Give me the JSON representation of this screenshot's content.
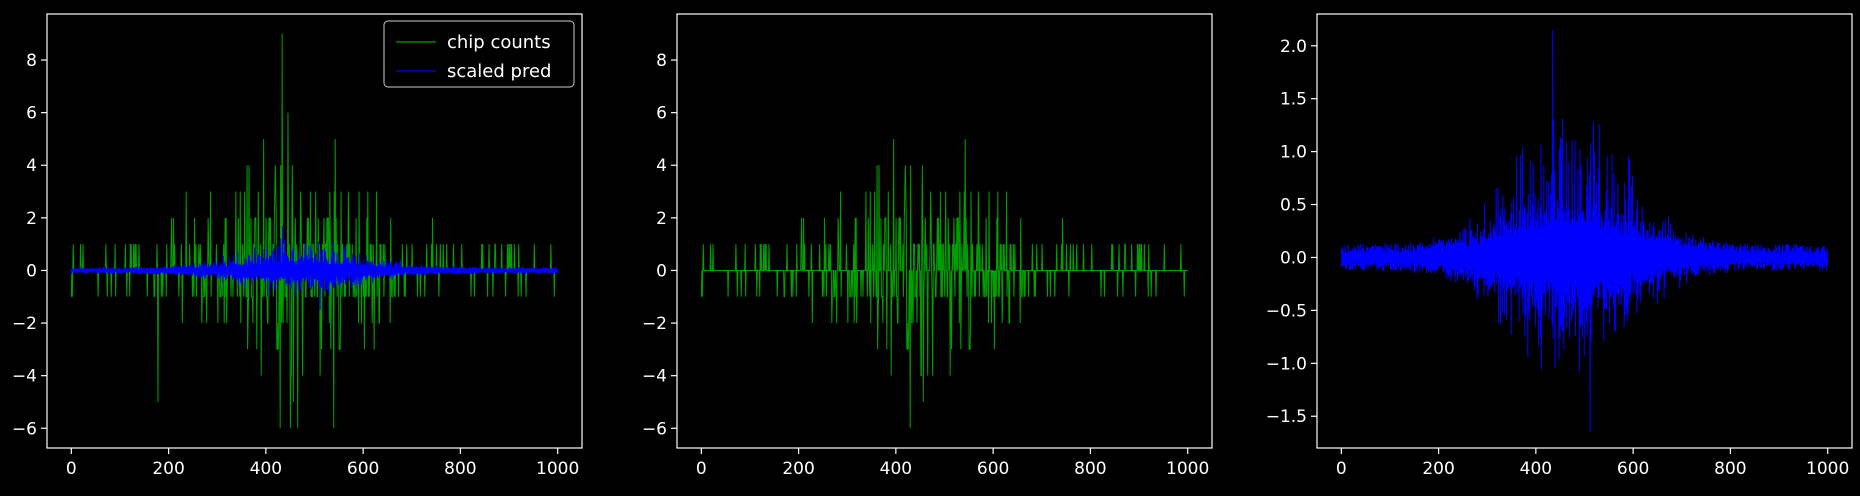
{
  "figure": {
    "background": "#000000",
    "axis_color": "#ffffff"
  },
  "chart_data": [
    {
      "type": "line",
      "title": "",
      "xlabel": "",
      "ylabel": "",
      "xlim": [
        -50,
        1050
      ],
      "ylim": [
        -6.75,
        9.75
      ],
      "xticks": [
        0,
        200,
        400,
        600,
        800,
        1000
      ],
      "yticks": [
        -6,
        -4,
        -2,
        0,
        2,
        4,
        6,
        8
      ],
      "legend": {
        "placement": "top-right",
        "entries": [
          "chip counts",
          "scaled pred"
        ]
      },
      "series": [
        {
          "name": "chip counts",
          "color": "#00a000",
          "kind": "integer-counts",
          "n": 1000,
          "x_range": [
            0,
            1000
          ],
          "envelope": {
            "center": 450,
            "peak_max": 9,
            "peak_min": -6
          },
          "notable_points": [
            {
              "x": 433,
              "y": 9
            },
            {
              "x": 445,
              "y": 6
            },
            {
              "x": 465,
              "y": -6
            },
            {
              "x": 450,
              "y": -6
            },
            {
              "x": 540,
              "y": -6
            },
            {
              "x": 178,
              "y": -5
            },
            {
              "x": 236,
              "y": 3
            },
            {
              "x": 623,
              "y": -3
            }
          ]
        },
        {
          "name": "scaled pred",
          "color": "#0000ff",
          "kind": "symmetric-envelope",
          "n": 1000,
          "x_range": [
            0,
            1000
          ],
          "envelope": {
            "center": 470,
            "peak_max": 1.7,
            "peak_min": -1.5,
            "baseline": 0.1
          }
        }
      ]
    },
    {
      "type": "line",
      "title": "",
      "xlabel": "",
      "ylabel": "",
      "xlim": [
        -50,
        1050
      ],
      "ylim": [
        -6.75,
        9.75
      ],
      "xticks": [
        0,
        200,
        400,
        600,
        800,
        1000
      ],
      "yticks": [
        -6,
        -4,
        -2,
        0,
        2,
        4,
        6,
        8
      ],
      "series": [
        {
          "color": "#00a000",
          "kind": "integer-counts",
          "n": 1000,
          "x_range": [
            0,
            1000
          ],
          "envelope": {
            "center": 450,
            "peak_max": 9,
            "peak_min": -6
          }
        }
      ]
    },
    {
      "type": "line",
      "title": "",
      "xlabel": "",
      "ylabel": "",
      "xlim": [
        -50,
        1050
      ],
      "ylim": [
        -1.8,
        2.3
      ],
      "xticks": [
        0,
        200,
        400,
        600,
        800,
        1000
      ],
      "yticks": [
        -1.5,
        -1.0,
        -0.5,
        0.0,
        0.5,
        1.0,
        1.5,
        2.0
      ],
      "series": [
        {
          "color": "#0000ff",
          "kind": "symmetric-envelope",
          "n": 1000,
          "x_range": [
            0,
            1000
          ],
          "envelope": {
            "center": 470,
            "peak_max": 2.15,
            "peak_min": -1.65,
            "baseline": 0.1
          }
        }
      ]
    }
  ]
}
